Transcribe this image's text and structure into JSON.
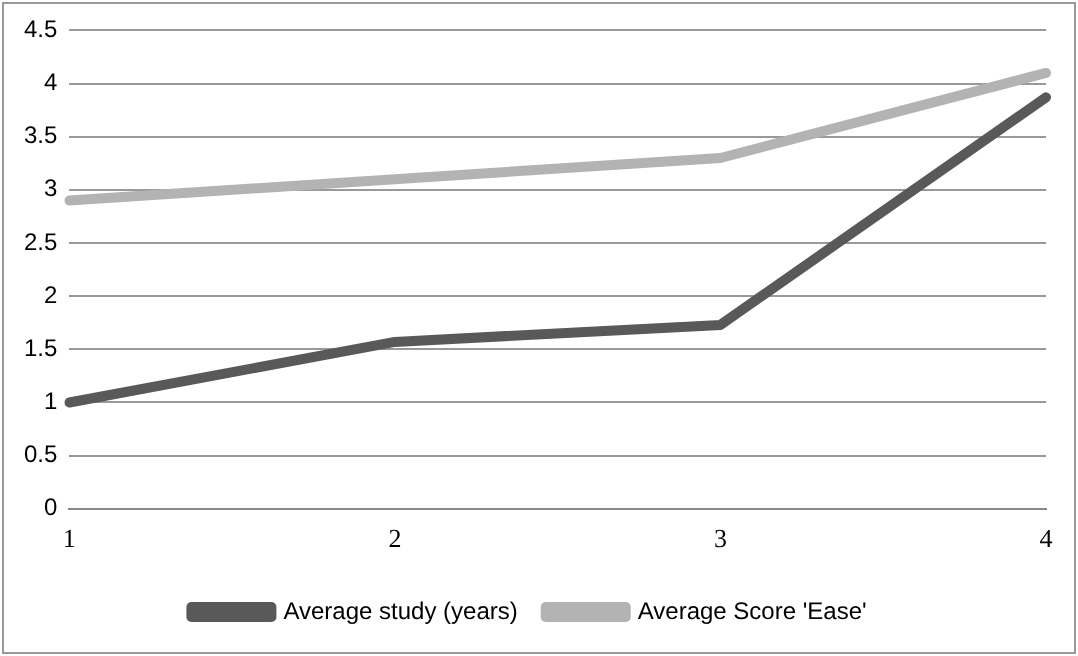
{
  "chart_data": {
    "type": "line",
    "categories": [
      "1",
      "2",
      "3",
      "4"
    ],
    "series": [
      {
        "name": "Average study (years)",
        "color": "#595959",
        "values": [
          1,
          1.57,
          1.73,
          3.87
        ]
      },
      {
        "name": "Average Score 'Ease'",
        "color": "#b3b3b3",
        "values": [
          2.9,
          3.1,
          3.3,
          4.1
        ]
      }
    ],
    "ylim": [
      0,
      4.5
    ],
    "yticks": [
      0,
      0.5,
      1,
      1.5,
      2,
      2.5,
      3,
      3.5,
      4,
      4.5
    ],
    "grid": "y",
    "legend": "bottom",
    "marker": "none",
    "line_style": "solid"
  }
}
